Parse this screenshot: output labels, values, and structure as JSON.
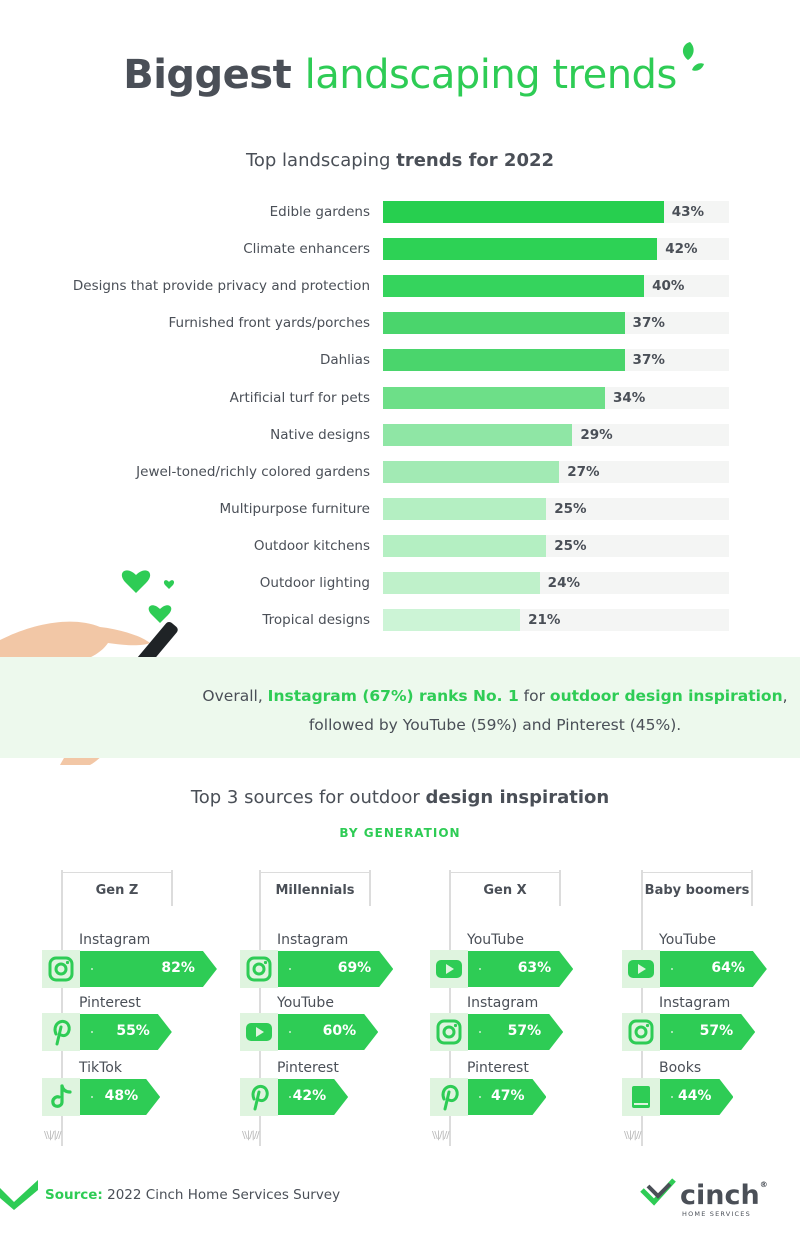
{
  "header": {
    "title_part1": "Biggest",
    "title_part2": "landscaping trends"
  },
  "chart_data": {
    "type": "bar",
    "orientation": "horizontal",
    "title_part1": "Top landscaping",
    "title_part2": "trends for 2022",
    "categories": [
      "Edible gardens",
      "Climate enhancers",
      "Designs that provide privacy and protection",
      "Furnished front yards/porches",
      "Dahlias",
      "Artificial turf for pets",
      "Native designs",
      "Jewel-toned/richly colored gardens",
      "Multipurpose furniture",
      "Outdoor kitchens",
      "Outdoor lighting",
      "Tropical designs"
    ],
    "values": [
      43,
      42,
      40,
      37,
      37,
      34,
      29,
      27,
      25,
      25,
      24,
      21
    ],
    "value_labels": [
      "43%",
      "42%",
      "40%",
      "37%",
      "37%",
      "34%",
      "29%",
      "27%",
      "25%",
      "25%",
      "24%",
      "21%"
    ],
    "xlim": [
      0,
      53
    ],
    "colors": [
      "#27cf4f",
      "#2dd255",
      "#35d45d",
      "#4ad56c",
      "#4ad56c",
      "#6ddf88",
      "#8fe6a5",
      "#a2eab4",
      "#b4efc2",
      "#b4efc2",
      "#bff1ca",
      "#ccf4d6"
    ]
  },
  "callout": {
    "t1": "Overall, ",
    "t2": "Instagram (67%) ranks No. 1",
    "t3": " for ",
    "t4": "outdoor design inspiration",
    "t5": ",",
    "t6": "followed by YouTube (59%) and Pinterest (45%)."
  },
  "sources": {
    "title_part1": "Top 3 sources for outdoor",
    "title_part2": "design inspiration",
    "subtitle": "BY GENERATION",
    "generations": [
      {
        "name": "Gen Z",
        "items": [
          {
            "label": "Instagram",
            "value": 82,
            "display": "82%",
            "icon": "instagram-icon"
          },
          {
            "label": "Pinterest",
            "value": 55,
            "display": "55%",
            "icon": "pinterest-icon"
          },
          {
            "label": "TikTok",
            "value": 48,
            "display": "48%",
            "icon": "tiktok-icon"
          }
        ]
      },
      {
        "name": "Millennials",
        "items": [
          {
            "label": "Instagram",
            "value": 69,
            "display": "69%",
            "icon": "instagram-icon"
          },
          {
            "label": "YouTube",
            "value": 60,
            "display": "60%",
            "icon": "youtube-icon"
          },
          {
            "label": "Pinterest",
            "value": 42,
            "display": "42%",
            "icon": "pinterest-icon"
          }
        ]
      },
      {
        "name": "Gen X",
        "items": [
          {
            "label": "YouTube",
            "value": 63,
            "display": "63%",
            "icon": "youtube-icon"
          },
          {
            "label": "Instagram",
            "value": 57,
            "display": "57%",
            "icon": "instagram-icon"
          },
          {
            "label": "Pinterest",
            "value": 47,
            "display": "47%",
            "icon": "pinterest-icon"
          }
        ]
      },
      {
        "name": "Baby boomers",
        "items": [
          {
            "label": "YouTube",
            "value": 64,
            "display": "64%",
            "icon": "youtube-icon"
          },
          {
            "label": "Instagram",
            "value": 57,
            "display": "57%",
            "icon": "instagram-icon"
          },
          {
            "label": "Books",
            "value": 44,
            "display": "44%",
            "icon": "book-icon"
          }
        ]
      }
    ]
  },
  "footer": {
    "source_label": "Source:",
    "source_text": " 2022 Cinch Home Services Survey"
  },
  "brand": {
    "name": "cinch",
    "mark": "®",
    "sub": "HOME SERVICES"
  },
  "colors": {
    "accent": "#2ecc55",
    "text": "#4a4f57",
    "band": "#edf9ed",
    "icon_bg": "#dff4df"
  }
}
